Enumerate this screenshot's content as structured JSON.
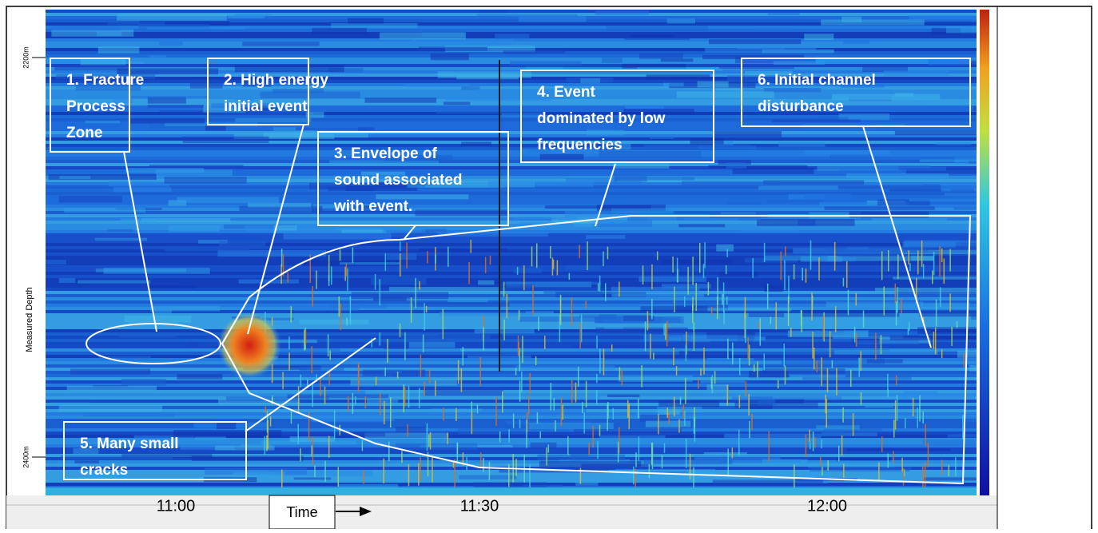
{
  "axis": {
    "y_label": "Measured Depth",
    "y_ticks": [
      "2200m",
      "2400m"
    ],
    "x_ticks": [
      "11:00",
      "11:30",
      "12:00"
    ],
    "x_label": "Time"
  },
  "annotations": [
    {
      "lines": [
        "1. Fracture",
        "Process",
        "Zone"
      ]
    },
    {
      "lines": [
        "2. High energy",
        "initial event"
      ]
    },
    {
      "lines": [
        "3. Envelope of",
        "sound associated",
        "with event."
      ]
    },
    {
      "lines": [
        "4. Event",
        "dominated by low",
        "frequencies"
      ]
    },
    {
      "lines": [
        "5. Many small",
        "cracks"
      ]
    },
    {
      "lines": [
        "6. Initial channel",
        "disturbance"
      ]
    }
  ]
}
